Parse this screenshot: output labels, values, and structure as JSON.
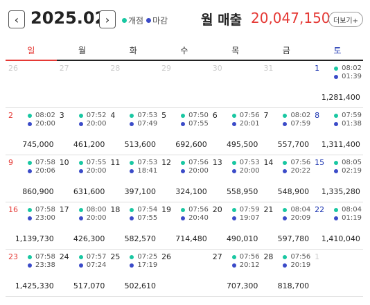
{
  "header": {
    "prev_icon": "‹",
    "next_icon": "›",
    "month": "2025.02",
    "legend_open": "개점",
    "legend_close": "마감",
    "open_color": "#19c7a2",
    "close_color": "#3b4bc8",
    "revenue_label": "월 매출",
    "revenue_value": "20,047,150",
    "more_label": "더보기+"
  },
  "weekdays": [
    "일",
    "월",
    "화",
    "수",
    "목",
    "금",
    "토"
  ],
  "weeks": [
    [
      {
        "day": "26",
        "muted": true
      },
      {
        "day": "27",
        "muted": true
      },
      {
        "day": "28",
        "muted": true
      },
      {
        "day": "29",
        "muted": true
      },
      {
        "day": "30",
        "muted": true
      },
      {
        "day": "31",
        "muted": true
      },
      {
        "day": "1",
        "open": "08:02",
        "close": "01:39",
        "sales": "1,281,400"
      }
    ],
    [
      {
        "day": "2",
        "open": "08:02",
        "close": "20:00",
        "sales": "745,000"
      },
      {
        "day": "3",
        "open": "07:52",
        "close": "20:00",
        "sales": "461,200"
      },
      {
        "day": "4",
        "open": "07:53",
        "close": "07:49",
        "sales": "513,600"
      },
      {
        "day": "5",
        "open": "07:50",
        "close": "07:55",
        "sales": "692,600"
      },
      {
        "day": "6",
        "open": "07:56",
        "close": "20:01",
        "sales": "495,500"
      },
      {
        "day": "7",
        "open": "08:02",
        "close": "07:59",
        "sales": "557,700"
      },
      {
        "day": "8",
        "open": "07:59",
        "close": "01:38",
        "sales": "1,311,400"
      }
    ],
    [
      {
        "day": "9",
        "open": "07:58",
        "close": "20:06",
        "sales": "860,900"
      },
      {
        "day": "10",
        "open": "07:55",
        "close": "20:00",
        "sales": "631,600"
      },
      {
        "day": "11",
        "open": "07:53",
        "close": "18:41",
        "sales": "397,100"
      },
      {
        "day": "12",
        "open": "07:56",
        "close": "20:00",
        "sales": "324,100"
      },
      {
        "day": "13",
        "open": "07:53",
        "close": "20:00",
        "sales": "558,950"
      },
      {
        "day": "14",
        "open": "07:56",
        "close": "20:22",
        "sales": "548,900"
      },
      {
        "day": "15",
        "open": "08:05",
        "close": "02:19",
        "sales": "1,335,280"
      }
    ],
    [
      {
        "day": "16",
        "open": "07:58",
        "close": "23:00",
        "sales": "1,139,730"
      },
      {
        "day": "17",
        "open": "08:00",
        "close": "20:00",
        "sales": "426,300"
      },
      {
        "day": "18",
        "open": "07:54",
        "close": "07:55",
        "sales": "582,570"
      },
      {
        "day": "19",
        "open": "07:56",
        "close": "20:40",
        "sales": "714,480"
      },
      {
        "day": "20",
        "open": "07:59",
        "close": "19:07",
        "sales": "490,010"
      },
      {
        "day": "21",
        "open": "08:04",
        "close": "20:09",
        "sales": "597,780"
      },
      {
        "day": "22",
        "open": "08:04",
        "close": "01:19",
        "sales": "1,410,040"
      }
    ],
    [
      {
        "day": "23",
        "open": "07:58",
        "close": "23:38",
        "sales": "1,425,330"
      },
      {
        "day": "24",
        "open": "07:57",
        "close": "07:24",
        "sales": "517,070"
      },
      {
        "day": "25",
        "open": "07:25",
        "close": "17:19",
        "sales": "502,610"
      },
      {
        "day": "26"
      },
      {
        "day": "27",
        "open": "07:56",
        "close": "20:12",
        "sales": "707,300"
      },
      {
        "day": "28",
        "open": "07:56",
        "close": "20:19",
        "sales": "818,700"
      },
      {
        "day": "1",
        "muted": true
      }
    ]
  ]
}
